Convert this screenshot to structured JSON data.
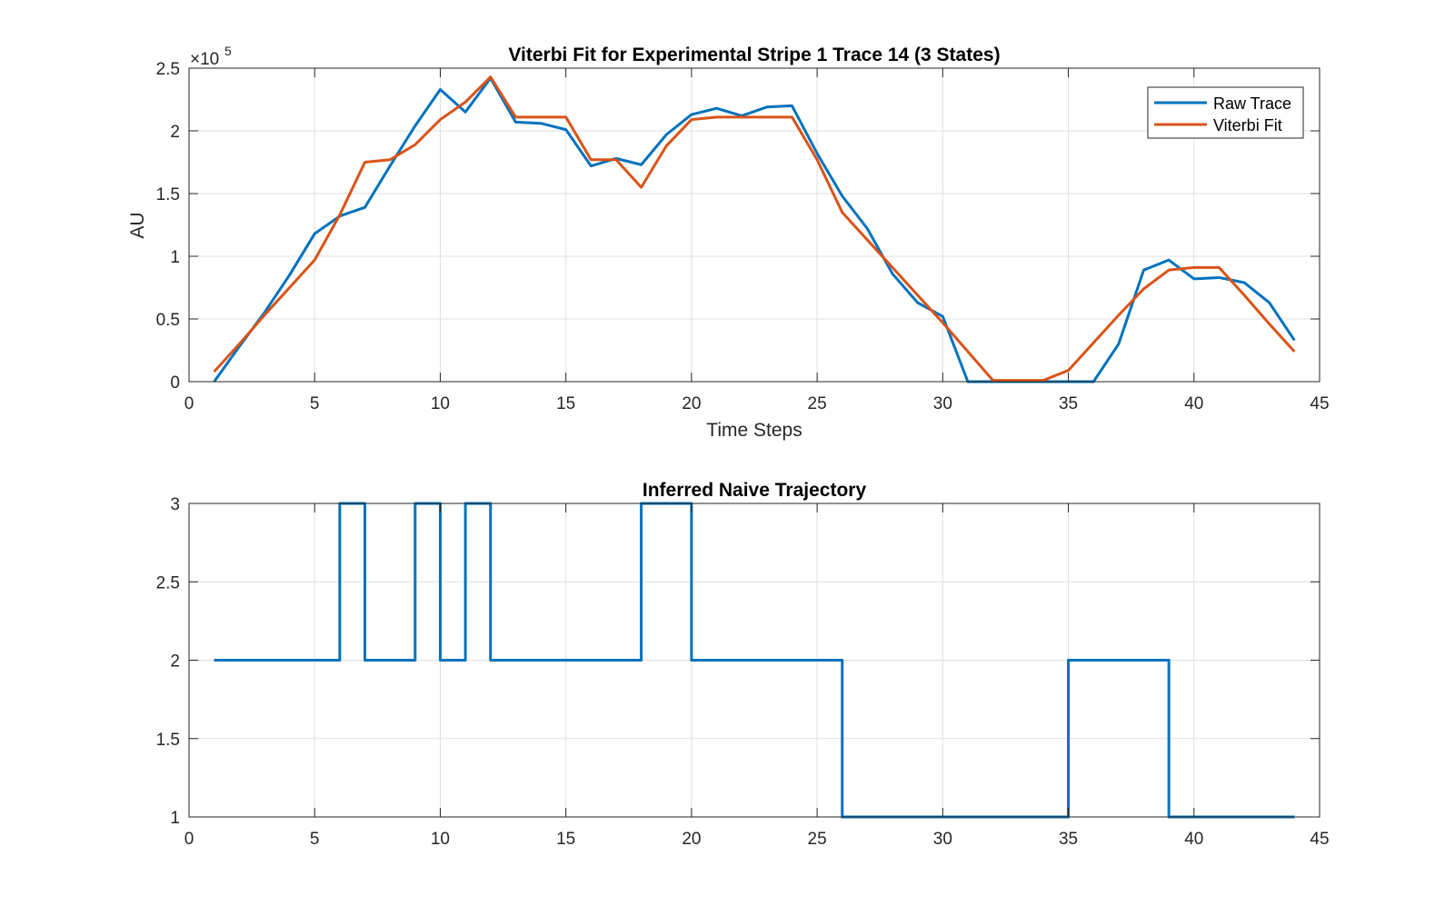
{
  "chart_data": [
    {
      "type": "line",
      "title": "Viterbi Fit for Experimental Stripe 1 Trace 14 (3 States)",
      "xlabel": "Time Steps",
      "ylabel": "AU",
      "y_exponent_label": "×10",
      "y_exponent_power": "5",
      "xlim": [
        0,
        45
      ],
      "ylim": [
        0,
        2.5
      ],
      "x_ticks": [
        "0",
        "5",
        "10",
        "15",
        "20",
        "25",
        "30",
        "35",
        "40",
        "45"
      ],
      "y_ticks": [
        "0",
        "0.5",
        "1",
        "1.5",
        "2",
        "2.5"
      ],
      "grid": true,
      "legend_position": "top-right",
      "x": [
        1,
        2,
        3,
        4,
        5,
        6,
        7,
        8,
        9,
        10,
        11,
        12,
        13,
        14,
        15,
        16,
        17,
        18,
        19,
        20,
        21,
        22,
        23,
        24,
        25,
        26,
        27,
        28,
        29,
        30,
        31,
        32,
        33,
        34,
        35,
        36,
        37,
        38,
        39,
        40,
        41,
        42,
        43,
        44
      ],
      "series": [
        {
          "name": "Raw Trace",
          "color": "#0072BD",
          "values": [
            0,
            0.28,
            0.55,
            0.85,
            1.18,
            1.32,
            1.39,
            1.72,
            2.04,
            2.33,
            2.15,
            2.42,
            2.07,
            2.06,
            2.01,
            1.72,
            1.78,
            1.73,
            1.97,
            2.13,
            2.18,
            2.12,
            2.19,
            2.2,
            1.82,
            1.48,
            1.22,
            0.86,
            0.63,
            0.52,
            0,
            0,
            0,
            0,
            0,
            0,
            0.3,
            0.89,
            0.97,
            0.82,
            0.83,
            0.79,
            0.63,
            0.33
          ]
        },
        {
          "name": "Viterbi Fit",
          "color": "#D95319",
          "values": [
            0.08,
            0.3,
            0.53,
            0.75,
            0.97,
            1.33,
            1.75,
            1.77,
            1.89,
            2.09,
            2.23,
            2.43,
            2.11,
            2.11,
            2.11,
            1.77,
            1.77,
            1.55,
            1.88,
            2.09,
            2.11,
            2.11,
            2.11,
            2.11,
            1.77,
            1.35,
            1.13,
            0.91,
            0.69,
            0.47,
            0.24,
            0.01,
            0.01,
            0.01,
            0.09,
            0.31,
            0.53,
            0.74,
            0.89,
            0.91,
            0.91,
            0.69,
            0.46,
            0.24
          ]
        }
      ]
    },
    {
      "type": "line",
      "step": true,
      "title": "Inferred Naive Trajectory",
      "xlabel": "",
      "ylabel": "",
      "xlim": [
        0,
        45
      ],
      "ylim": [
        1,
        3
      ],
      "x_ticks": [
        "0",
        "5",
        "10",
        "15",
        "20",
        "25",
        "30",
        "35",
        "40",
        "45"
      ],
      "y_ticks": [
        "1",
        "1.5",
        "2",
        "2.5",
        "3"
      ],
      "grid": true,
      "x": [
        1,
        2,
        3,
        4,
        5,
        6,
        7,
        8,
        9,
        10,
        11,
        12,
        13,
        14,
        15,
        16,
        17,
        18,
        19,
        20,
        21,
        22,
        23,
        24,
        25,
        26,
        27,
        28,
        29,
        30,
        31,
        32,
        33,
        34,
        35,
        36,
        37,
        38,
        39,
        40,
        41,
        42,
        43,
        44
      ],
      "series": [
        {
          "color": "#0072BD",
          "values": [
            2,
            2,
            2,
            2,
            2,
            3,
            2,
            2,
            3,
            2,
            3,
            2,
            2,
            2,
            2,
            2,
            2,
            3,
            3,
            2,
            2,
            2,
            2,
            2,
            2,
            1,
            1,
            1,
            1,
            1,
            1,
            1,
            1,
            1,
            2,
            2,
            2,
            2,
            1,
            1,
            1,
            1,
            1,
            1
          ]
        }
      ]
    }
  ]
}
